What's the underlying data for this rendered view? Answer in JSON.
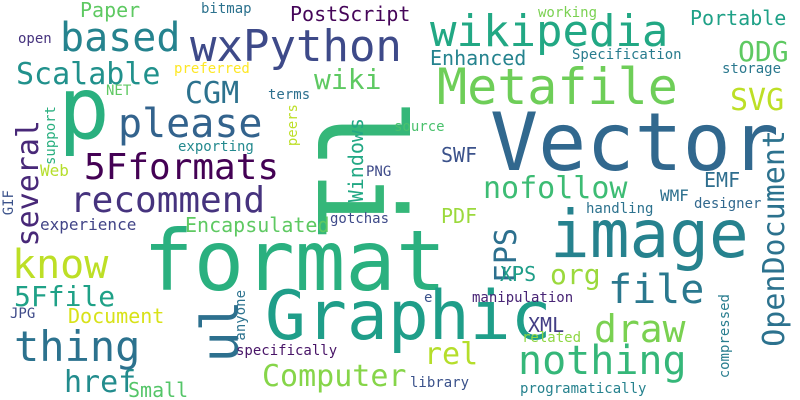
{
  "words": [
    {
      "text": "format",
      "color": "#2ab07f"
    },
    {
      "text": "li",
      "color": "#35b779"
    },
    {
      "text": "Vector",
      "color": "#31688e"
    },
    {
      "text": "image",
      "color": "#26828e"
    },
    {
      "text": "Graphic",
      "color": "#1f9e89"
    },
    {
      "text": "p",
      "color": "#2ab07f"
    },
    {
      "text": "Metafile",
      "color": "#6ece58"
    },
    {
      "text": "wxPython",
      "color": "#3e4a89"
    },
    {
      "text": "wikipedia",
      "color": "#22a884"
    },
    {
      "text": "based",
      "color": "#25838e"
    },
    {
      "text": "please",
      "color": "#33638d"
    },
    {
      "text": "5Fformats",
      "color": "#440154"
    },
    {
      "text": "recommend",
      "color": "#46337e"
    },
    {
      "text": "ul",
      "color": "#2d708e"
    },
    {
      "text": "thing",
      "color": "#2c728e"
    },
    {
      "text": "nothing",
      "color": "#35b779"
    },
    {
      "text": "know",
      "color": "#bddf26"
    },
    {
      "text": "Scalable",
      "color": "#21918c"
    },
    {
      "text": "file",
      "color": "#2a788e"
    },
    {
      "text": "draw",
      "color": "#7ad151"
    },
    {
      "text": "OpenDocument",
      "color": "#2c728e"
    },
    {
      "text": "Computer",
      "color": "#86d549"
    },
    {
      "text": "nofollow",
      "color": "#3dbc74"
    },
    {
      "text": "5Ffile",
      "color": "#1fa187"
    },
    {
      "text": "several",
      "color": "#482878"
    },
    {
      "text": "CGM",
      "color": "#2c728e"
    },
    {
      "text": "SVG",
      "color": "#bddf26"
    },
    {
      "text": "wiki",
      "color": "#5ec962"
    },
    {
      "text": "ODG",
      "color": "#5ec962"
    },
    {
      "text": "Encapsulated",
      "color": "#5ec962"
    },
    {
      "text": "href",
      "color": "#228c8d"
    },
    {
      "text": "EPS",
      "color": "#2d708e"
    },
    {
      "text": "org",
      "color": "#9bd93c"
    },
    {
      "text": "rel",
      "color": "#b5de2b"
    },
    {
      "text": "Enhanced",
      "color": "#25838e"
    },
    {
      "text": "PostScript",
      "color": "#450559"
    },
    {
      "text": "Paper",
      "color": "#5ec962"
    },
    {
      "text": "Portable",
      "color": "#1fa187"
    },
    {
      "text": "Windows",
      "color": "#22a884"
    },
    {
      "text": "Document",
      "color": "#d8e219"
    },
    {
      "text": "Small",
      "color": "#54c568"
    },
    {
      "text": "SWF",
      "color": "#3b528b"
    },
    {
      "text": "PDF",
      "color": "#9bd93c"
    },
    {
      "text": "XPS",
      "color": "#1f9e89"
    },
    {
      "text": "XML",
      "color": "#433e85"
    },
    {
      "text": "EMF",
      "color": "#2e6e8e"
    },
    {
      "text": "WMF",
      "color": "#2d708e"
    },
    {
      "text": "experience",
      "color": "#414487"
    },
    {
      "text": "anyone",
      "color": "#2c728e"
    },
    {
      "text": "exporting",
      "color": "#23898e"
    },
    {
      "text": "Web",
      "color": "#b5de2b"
    },
    {
      "text": "gotchas",
      "color": "#3e4a89"
    },
    {
      "text": "handling",
      "color": "#2c728e"
    },
    {
      "text": "designer",
      "color": "#31688e"
    },
    {
      "text": "manipulation",
      "color": "#482475"
    },
    {
      "text": "specifically",
      "color": "#481467"
    },
    {
      "text": "programatically",
      "color": "#26828e"
    },
    {
      "text": "library",
      "color": "#3b528b"
    },
    {
      "text": "related",
      "color": "#8fd744"
    },
    {
      "text": "compressed",
      "color": "#287d8e"
    },
    {
      "text": "Specification",
      "color": "#287c8e"
    },
    {
      "text": "storage",
      "color": "#2a788e"
    },
    {
      "text": "working",
      "color": "#7ad151"
    },
    {
      "text": "bitmap",
      "color": "#2c728e"
    },
    {
      "text": "preferred",
      "color": "#fde725"
    },
    {
      "text": "source",
      "color": "#4ac16d"
    },
    {
      "text": "terms",
      "color": "#2d708e"
    },
    {
      "text": "peers",
      "color": "#bddf26"
    },
    {
      "text": "support",
      "color": "#29af7f"
    },
    {
      "text": "NET",
      "color": "#5ec962"
    },
    {
      "text": "open",
      "color": "#46337e"
    },
    {
      "text": "GIF",
      "color": "#3b528b"
    },
    {
      "text": "PNG",
      "color": "#3e4a89"
    },
    {
      "text": "JPG",
      "color": "#3e4a89"
    },
    {
      "text": "e",
      "color": "#3b528b"
    }
  ]
}
